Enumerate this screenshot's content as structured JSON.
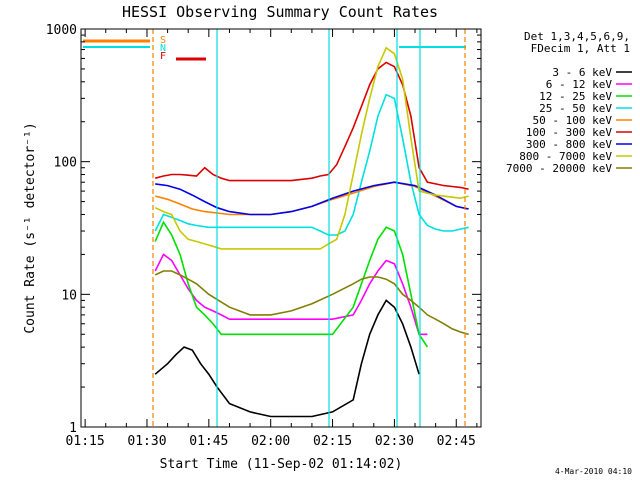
{
  "chart_data": {
    "type": "line",
    "title": "HESSI Observing Summary Count Rates",
    "xlabel": "Start Time (11-Sep-02 01:14:02)",
    "ylabel": "Count Rate (s⁻¹ detector⁻¹)",
    "y_scale": "log",
    "xlim": [
      74,
      171
    ],
    "ylim": [
      1,
      1000
    ],
    "x_ticks": [
      75,
      90,
      105,
      120,
      135,
      150,
      165
    ],
    "x_tick_labels": [
      "01:15",
      "01:30",
      "01:45",
      "02:00",
      "02:15",
      "02:30",
      "02:45"
    ],
    "y_ticks": [
      1,
      10,
      100,
      1000
    ],
    "y_tick_labels": [
      "1",
      "10",
      "100",
      "1000"
    ],
    "legend_header": [
      "Det 1,3,4,5,6,9,",
      "FDecim 1, Att 1"
    ],
    "legend_position": "right, outside plot",
    "series": [
      {
        "name": "3 - 6 keV",
        "color": "#000000",
        "x": [
          92,
          95,
          97,
          99,
          101,
          103,
          105,
          107,
          110,
          115,
          120,
          125,
          130,
          135,
          140,
          142,
          144,
          146,
          148,
          150,
          152,
          154,
          156
        ],
        "y": [
          2.5,
          3.0,
          3.5,
          4.0,
          3.8,
          3.0,
          2.5,
          2.0,
          1.5,
          1.3,
          1.2,
          1.2,
          1.2,
          1.3,
          1.6,
          3.0,
          5.0,
          7.0,
          9.0,
          8.0,
          6.0,
          4.0,
          2.5
        ]
      },
      {
        "name": "6 - 12 keV",
        "color": "#ff00ff",
        "x": [
          92,
          94,
          96,
          98,
          100,
          102,
          104,
          106,
          108,
          110,
          112,
          115,
          120,
          125,
          130,
          135,
          140,
          142,
          144,
          146,
          148,
          150,
          152,
          154,
          156,
          158
        ],
        "y": [
          15,
          20,
          18,
          14,
          11,
          9,
          8,
          7.5,
          7,
          6.5,
          6.5,
          6.5,
          6.5,
          6.5,
          6.5,
          6.5,
          7,
          9,
          12,
          15,
          18,
          17,
          12,
          8,
          5,
          5
        ]
      },
      {
        "name": "12 - 25 keV",
        "color": "#00e000",
        "x": [
          92,
          94,
          96,
          98,
          100,
          102,
          104,
          106,
          108,
          110,
          112,
          115,
          120,
          125,
          130,
          135,
          140,
          142,
          144,
          146,
          148,
          150,
          152,
          154,
          156,
          158
        ],
        "y": [
          25,
          35,
          28,
          20,
          12,
          8,
          7,
          6,
          5,
          5,
          5,
          5,
          5,
          5,
          5,
          5,
          8,
          12,
          18,
          26,
          32,
          30,
          20,
          10,
          5,
          4
        ]
      },
      {
        "name": "25 - 50 keV",
        "color": "#00e0e0",
        "x": [
          92,
          94,
          96,
          98,
          100,
          102,
          105,
          110,
          115,
          120,
          125,
          130,
          132,
          134,
          136,
          138,
          140,
          142,
          144,
          146,
          148,
          150,
          152,
          154,
          156,
          158,
          160,
          162,
          164,
          166,
          168
        ],
        "y": [
          30,
          40,
          38,
          36,
          34,
          33,
          32,
          32,
          32,
          32,
          32,
          32,
          30,
          28,
          28,
          30,
          40,
          70,
          120,
          220,
          320,
          300,
          150,
          70,
          40,
          33,
          31,
          30,
          30,
          31,
          32
        ]
      },
      {
        "name": "50 - 100 keV",
        "color": "#ff8000",
        "x": [
          92,
          95,
          98,
          101,
          104,
          107,
          110,
          115,
          120,
          125,
          130,
          135,
          140,
          145,
          150,
          155,
          160,
          165,
          168
        ],
        "y": [
          55,
          52,
          48,
          44,
          42,
          41,
          40,
          40,
          40,
          42,
          46,
          52,
          58,
          65,
          70,
          65,
          55,
          46,
          44
        ]
      },
      {
        "name": "100 - 300 keV",
        "color": "#dd0000",
        "x": [
          92,
          94,
          96,
          98,
          100,
          102,
          104,
          106,
          108,
          110,
          115,
          120,
          125,
          130,
          132,
          134,
          136,
          138,
          140,
          142,
          144,
          146,
          148,
          150,
          152,
          154,
          156,
          158,
          160,
          162,
          164,
          166,
          168
        ],
        "y": [
          75,
          78,
          80,
          80,
          79,
          78,
          90,
          80,
          75,
          72,
          72,
          72,
          72,
          75,
          78,
          80,
          95,
          130,
          180,
          260,
          380,
          500,
          560,
          520,
          380,
          220,
          90,
          70,
          68,
          66,
          65,
          64,
          62
        ]
      },
      {
        "name": "300 - 800 keV",
        "color": "#0000ee",
        "x": [
          92,
          95,
          98,
          101,
          104,
          107,
          110,
          115,
          120,
          125,
          130,
          135,
          140,
          145,
          150,
          155,
          160,
          165,
          168
        ],
        "y": [
          68,
          66,
          62,
          56,
          50,
          45,
          42,
          40,
          40,
          42,
          46,
          53,
          60,
          66,
          70,
          66,
          56,
          46,
          44
        ]
      },
      {
        "name": "800 - 7000 keV",
        "color": "#c8c800",
        "x": [
          92,
          94,
          96,
          98,
          100,
          102,
          104,
          106,
          108,
          110,
          115,
          120,
          125,
          130,
          132,
          134,
          136,
          138,
          140,
          142,
          144,
          146,
          148,
          150,
          152,
          154,
          156,
          158,
          160,
          162,
          164,
          166,
          168
        ],
        "y": [
          45,
          42,
          40,
          30,
          26,
          25,
          24,
          23,
          22,
          22,
          22,
          22,
          22,
          22,
          22,
          24,
          26,
          40,
          80,
          160,
          300,
          520,
          720,
          650,
          420,
          150,
          60,
          58,
          56,
          55,
          54,
          53,
          55
        ]
      },
      {
        "name": "7000 - 20000 keV",
        "color": "#808000",
        "x": [
          92,
          94,
          96,
          98,
          100,
          102,
          105,
          110,
          115,
          120,
          125,
          130,
          135,
          140,
          142,
          144,
          146,
          148,
          150,
          152,
          154,
          156,
          158,
          160,
          162,
          164,
          166,
          168
        ],
        "y": [
          14,
          15,
          15,
          14,
          13,
          12,
          10,
          8,
          7,
          7,
          7.5,
          8.5,
          10,
          12,
          13,
          13.5,
          13.5,
          13,
          12,
          10,
          9,
          8,
          7,
          6.5,
          6,
          5.5,
          5.2,
          5
        ]
      }
    ],
    "flag_markers": [
      {
        "label": "S",
        "color": "#ff8000"
      },
      {
        "label": "N",
        "color": "#00e0e0"
      },
      {
        "label": "F",
        "color": "#dd0000"
      }
    ],
    "footer_date": "4-Mar-2010 04:10"
  }
}
